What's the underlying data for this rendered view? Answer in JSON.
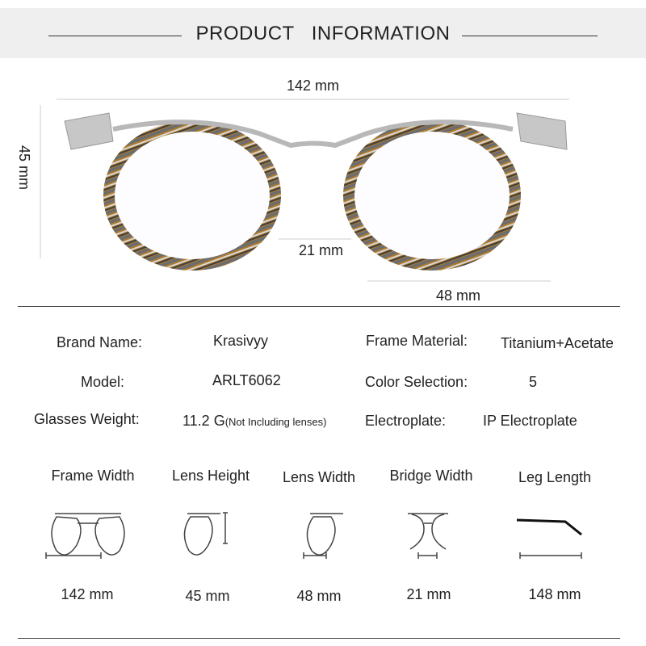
{
  "header": {
    "title": "PRODUCT   INFORMATION"
  },
  "photo_dimensions": {
    "total_width": "142 mm",
    "height": "45 mm",
    "bridge": "21 mm",
    "lens_width": "48 mm"
  },
  "specs": [
    {
      "label": "Brand Name:",
      "value": "Krasivyy"
    },
    {
      "label": "Frame Material:",
      "value": "Titanium+Acetate"
    },
    {
      "label": "Model:",
      "value": "ARLT6062"
    },
    {
      "label": "Color Selection:",
      "value": "5"
    },
    {
      "label": "Glasses Weight:",
      "value": "11.2 G",
      "note": "(Not Including lenses)"
    },
    {
      "label": "Electroplate:",
      "value": "IP Electroplate"
    }
  ],
  "measurements": [
    {
      "title": "Frame Width",
      "value": "142 mm",
      "icon": "frame-width-icon"
    },
    {
      "title": "Lens Height",
      "value": "45 mm",
      "icon": "lens-height-icon"
    },
    {
      "title": "Lens Width",
      "value": "48 mm",
      "icon": "lens-width-icon"
    },
    {
      "title": "Bridge Width",
      "value": "21 mm",
      "icon": "bridge-width-icon"
    },
    {
      "title": "Leg Length",
      "value": "148 mm",
      "icon": "leg-length-icon"
    }
  ],
  "colors": {
    "header_bg": "#efefef",
    "frame_amber": "#b07a2a",
    "frame_grey": "#6d6d6d",
    "metal": "#b8b8b8"
  }
}
